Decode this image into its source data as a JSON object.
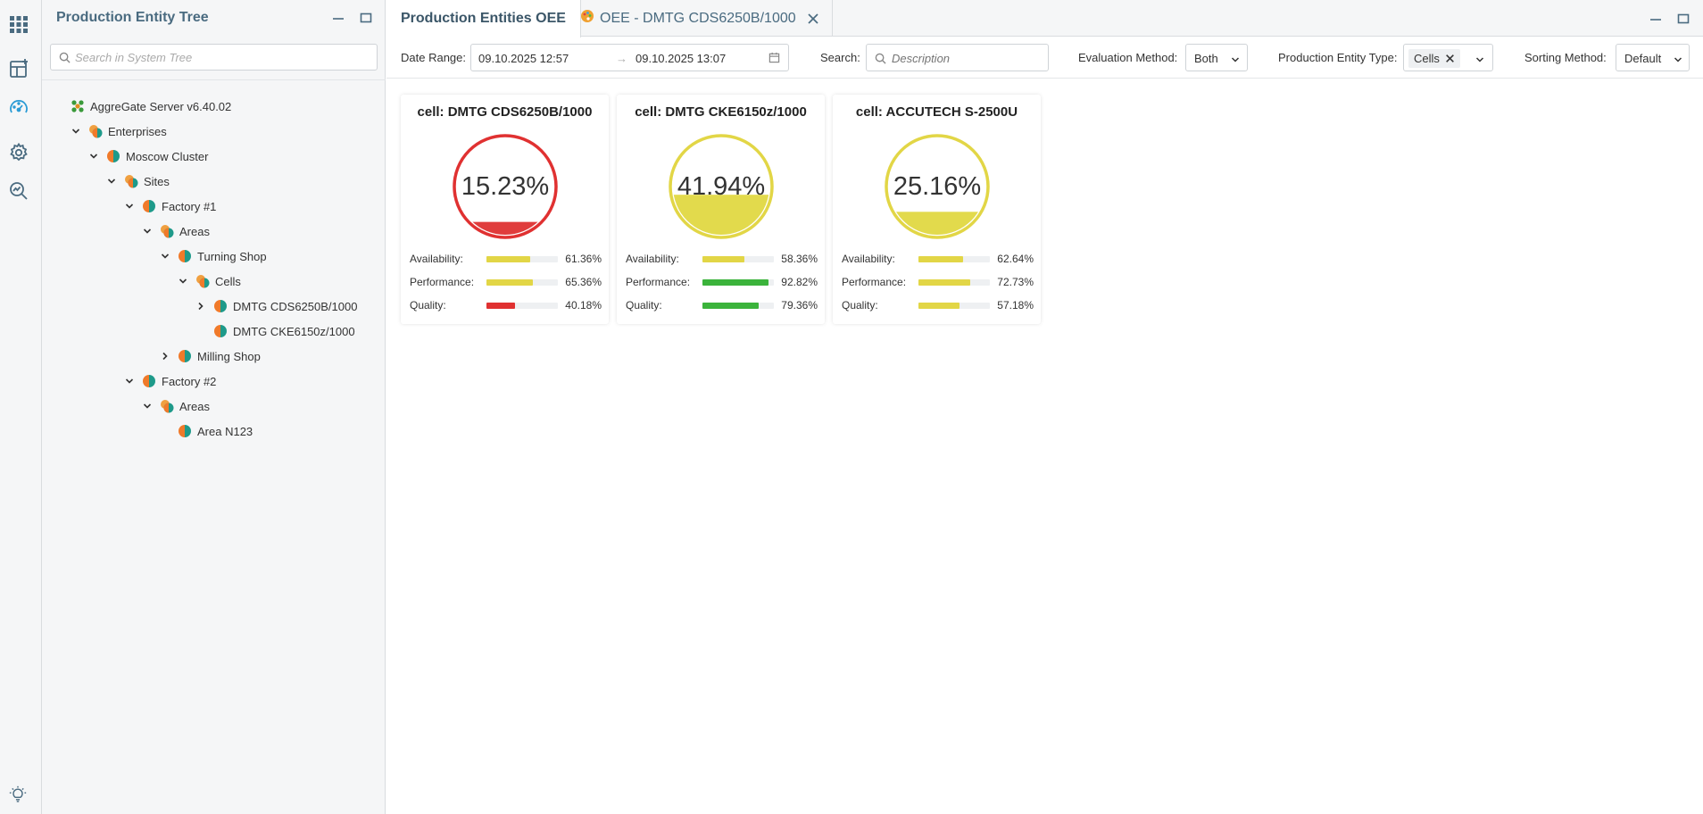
{
  "rail": {
    "icons": [
      "apps-grid-icon",
      "add-dashboard-icon",
      "dashboard-gauge-icon",
      "settings-gear-icon",
      "search-analytics-icon"
    ],
    "bottom_icon": "lightbulb-icon"
  },
  "tree_panel": {
    "title": "Production Entity Tree",
    "search_placeholder": "Search in System Tree",
    "nodes": [
      {
        "label": "AggreGate Server v6.40.02",
        "depth": 0,
        "expand": "none",
        "icon": "server-icon"
      },
      {
        "label": "Enterprises",
        "depth": 1,
        "expand": "open",
        "icon": "group-icon"
      },
      {
        "label": "Moscow Cluster",
        "depth": 2,
        "expand": "open",
        "icon": "entity-icon"
      },
      {
        "label": "Sites",
        "depth": 3,
        "expand": "open",
        "icon": "group-icon"
      },
      {
        "label": "Factory #1",
        "depth": 4,
        "expand": "open",
        "icon": "entity-icon"
      },
      {
        "label": "Areas",
        "depth": 5,
        "expand": "open",
        "icon": "group-icon"
      },
      {
        "label": "Turning Shop",
        "depth": 6,
        "expand": "open",
        "icon": "entity-icon"
      },
      {
        "label": "Cells",
        "depth": 7,
        "expand": "open",
        "icon": "group-icon"
      },
      {
        "label": "DMTG CDS6250B/1000",
        "depth": 8,
        "expand": "closed",
        "icon": "entity-icon"
      },
      {
        "label": "DMTG CKE6150z/1000",
        "depth": 8,
        "expand": "none",
        "icon": "entity-icon"
      },
      {
        "label": "Milling Shop",
        "depth": 6,
        "expand": "closed",
        "icon": "entity-icon"
      },
      {
        "label": "Factory #2",
        "depth": 4,
        "expand": "open",
        "icon": "entity-icon"
      },
      {
        "label": "Areas",
        "depth": 5,
        "expand": "open",
        "icon": "group-icon"
      },
      {
        "label": "Area N123",
        "depth": 6,
        "expand": "none",
        "icon": "entity-icon"
      }
    ]
  },
  "tabs": [
    {
      "label": "Production Entities OEE",
      "active": true
    },
    {
      "label": "OEE - DMTG CDS6250B/1000",
      "active": false,
      "icon": "palette-icon"
    }
  ],
  "toolbar": {
    "date_range_label": "Date Range:",
    "date_from": "09.10.2025 12:57",
    "date_arrow": "→",
    "date_to": "09.10.2025 13:07",
    "search_label": "Search:",
    "search_placeholder": "Description",
    "evaluation_label": "Evaluation Method:",
    "evaluation_value": "Both",
    "entity_type_label": "Production Entity Type:",
    "entity_type_chip": "Cells",
    "sorting_label": "Sorting Method:",
    "sorting_value": "Default"
  },
  "cards": [
    {
      "title": "cell: DMTG CDS6250B/1000",
      "oee": "15.23%",
      "oee_value": 0.1523,
      "color": "#e03131",
      "fill": "#e03c3c",
      "metrics": [
        {
          "label": "Availability:",
          "value": "61.36%",
          "fraction": 0.6136,
          "color": "#e2d646"
        },
        {
          "label": "Performance:",
          "value": "65.36%",
          "fraction": 0.6536,
          "color": "#e2d646"
        },
        {
          "label": "Quality:",
          "value": "40.18%",
          "fraction": 0.4018,
          "color": "#e03131"
        }
      ]
    },
    {
      "title": "cell: DMTG CKE6150z/1000",
      "oee": "41.94%",
      "oee_value": 0.4194,
      "color": "#e2d646",
      "fill": "#e2da4c",
      "metrics": [
        {
          "label": "Availability:",
          "value": "58.36%",
          "fraction": 0.5836,
          "color": "#e2d646"
        },
        {
          "label": "Performance:",
          "value": "92.82%",
          "fraction": 0.9282,
          "color": "#3bb33b"
        },
        {
          "label": "Quality:",
          "value": "79.36%",
          "fraction": 0.7936,
          "color": "#3bb33b"
        }
      ]
    },
    {
      "title": "cell: ACCUTECH S-2500U",
      "oee": "25.16%",
      "oee_value": 0.2516,
      "color": "#e2d646",
      "fill": "#e2da4c",
      "metrics": [
        {
          "label": "Availability:",
          "value": "62.64%",
          "fraction": 0.6264,
          "color": "#e2d646"
        },
        {
          "label": "Performance:",
          "value": "72.73%",
          "fraction": 0.7273,
          "color": "#e2d646"
        },
        {
          "label": "Quality:",
          "value": "57.18%",
          "fraction": 0.5718,
          "color": "#e2d646"
        }
      ]
    }
  ]
}
